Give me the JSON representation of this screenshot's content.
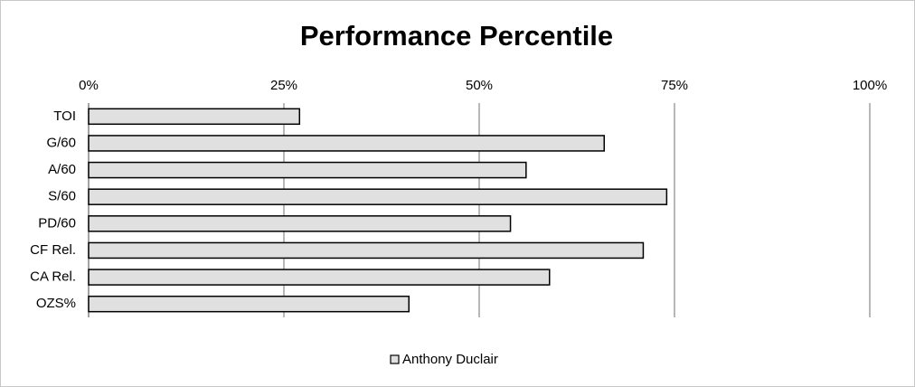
{
  "chart_data": {
    "type": "bar",
    "orientation": "horizontal",
    "title": "Performance Percentile",
    "categories": [
      "TOI",
      "G/60",
      "A/60",
      "S/60",
      "PD/60",
      "CF Rel.",
      "CA Rel.",
      "OZS%"
    ],
    "series": [
      {
        "name": "Anthony Duclair",
        "color": "#e0e0e0",
        "values": [
          27,
          66,
          56,
          74,
          54,
          71,
          59,
          41
        ]
      }
    ],
    "xlim": [
      0,
      100
    ],
    "xticks": [
      {
        "value": 0,
        "label": "0%"
      },
      {
        "value": 25,
        "label": "25%"
      },
      {
        "value": 50,
        "label": "50%"
      },
      {
        "value": 75,
        "label": "75%"
      },
      {
        "value": 100,
        "label": "100%"
      }
    ],
    "grid": true,
    "legend": "bottom"
  }
}
